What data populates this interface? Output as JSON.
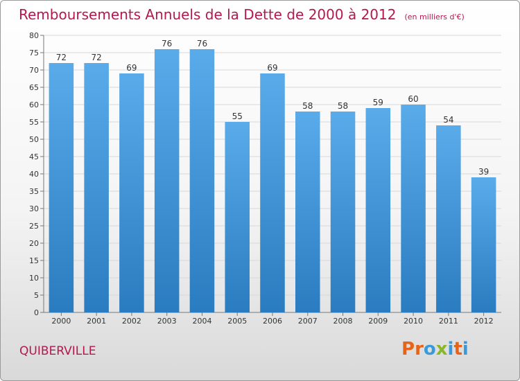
{
  "chart_data": {
    "type": "bar",
    "title": "Remboursements Annuels de la Dette de 2000 à 2012",
    "unit_note": "(en milliers d'€)",
    "categories": [
      "2000",
      "2001",
      "2002",
      "2003",
      "2004",
      "2005",
      "2006",
      "2007",
      "2008",
      "2009",
      "2010",
      "2011",
      "2012"
    ],
    "values": [
      72,
      72,
      69,
      76,
      76,
      55,
      69,
      58,
      58,
      59,
      60,
      54,
      39
    ],
    "ylim": [
      0,
      80
    ],
    "yticks": [
      0,
      5,
      10,
      15,
      20,
      25,
      30,
      35,
      40,
      45,
      50,
      55,
      60,
      65,
      70,
      75,
      80
    ],
    "grid": true,
    "bar_color_top": "#5aabea",
    "bar_color_bottom": "#2a7cc0"
  },
  "footer": {
    "commune": "QUIBERVILLE",
    "brand": "Proxiti"
  },
  "colors": {
    "title": "#b5174f",
    "brand_letters": [
      "#e8631a",
      "#e8631a",
      "#3a9ad9",
      "#88b829",
      "#3a9ad9",
      "#e8631a",
      "#3a9ad9"
    ]
  }
}
